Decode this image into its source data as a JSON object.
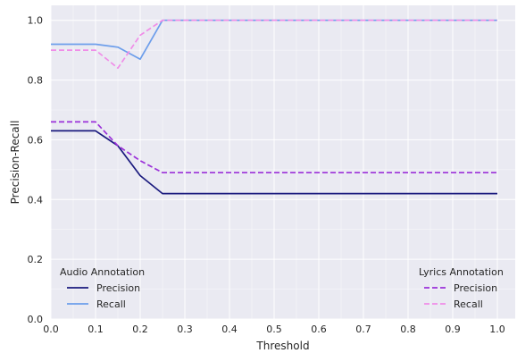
{
  "chart_data": {
    "type": "line",
    "xlabel": "Threshold",
    "ylabel": "Precision-Recall",
    "xlim": [
      -0.0,
      1.04
    ],
    "ylim": [
      0.0,
      1.05
    ],
    "xticks": [
      "0.0",
      "0.1",
      "0.2",
      "0.3",
      "0.4",
      "0.5",
      "0.6",
      "0.7",
      "0.8",
      "0.9",
      "1.0"
    ],
    "yticks": [
      "0.0",
      "0.2",
      "0.4",
      "0.6",
      "0.8",
      "1.0"
    ],
    "grid": true,
    "background": "#eaeaf2",
    "series": [
      {
        "name": "Precision",
        "group": "audio",
        "color": "#1a1a7e",
        "dash": "solid",
        "x": [
          0.0,
          0.1,
          0.15,
          0.2,
          0.25,
          1.0
        ],
        "y": [
          0.63,
          0.63,
          0.58,
          0.48,
          0.42,
          0.42
        ]
      },
      {
        "name": "Recall",
        "group": "audio",
        "color": "#6d9eeb",
        "dash": "solid",
        "x": [
          0.0,
          0.1,
          0.15,
          0.2,
          0.25,
          1.0
        ],
        "y": [
          0.92,
          0.92,
          0.91,
          0.87,
          1.0,
          1.0
        ]
      },
      {
        "name": "Precision",
        "group": "lyrics",
        "color": "#9b30d9",
        "dash": "dashed",
        "x": [
          0.0,
          0.1,
          0.15,
          0.2,
          0.25,
          1.0
        ],
        "y": [
          0.66,
          0.66,
          0.58,
          0.53,
          0.49,
          0.49
        ]
      },
      {
        "name": "Recall",
        "group": "lyrics",
        "color": "#f08de8",
        "dash": "dashed",
        "x": [
          0.0,
          0.1,
          0.15,
          0.2,
          0.25,
          1.0
        ],
        "y": [
          0.9,
          0.9,
          0.84,
          0.95,
          1.0,
          1.0
        ]
      }
    ],
    "legends": [
      {
        "title": "Audio Annotation",
        "placement": "bottom-left",
        "entries": [
          {
            "label": "Precision",
            "series": 0
          },
          {
            "label": "Recall",
            "series": 1
          }
        ]
      },
      {
        "title": "Lyrics Annotation",
        "placement": "bottom-right",
        "entries": [
          {
            "label": "Precision",
            "series": 2
          },
          {
            "label": "Recall",
            "series": 3
          }
        ]
      }
    ]
  }
}
